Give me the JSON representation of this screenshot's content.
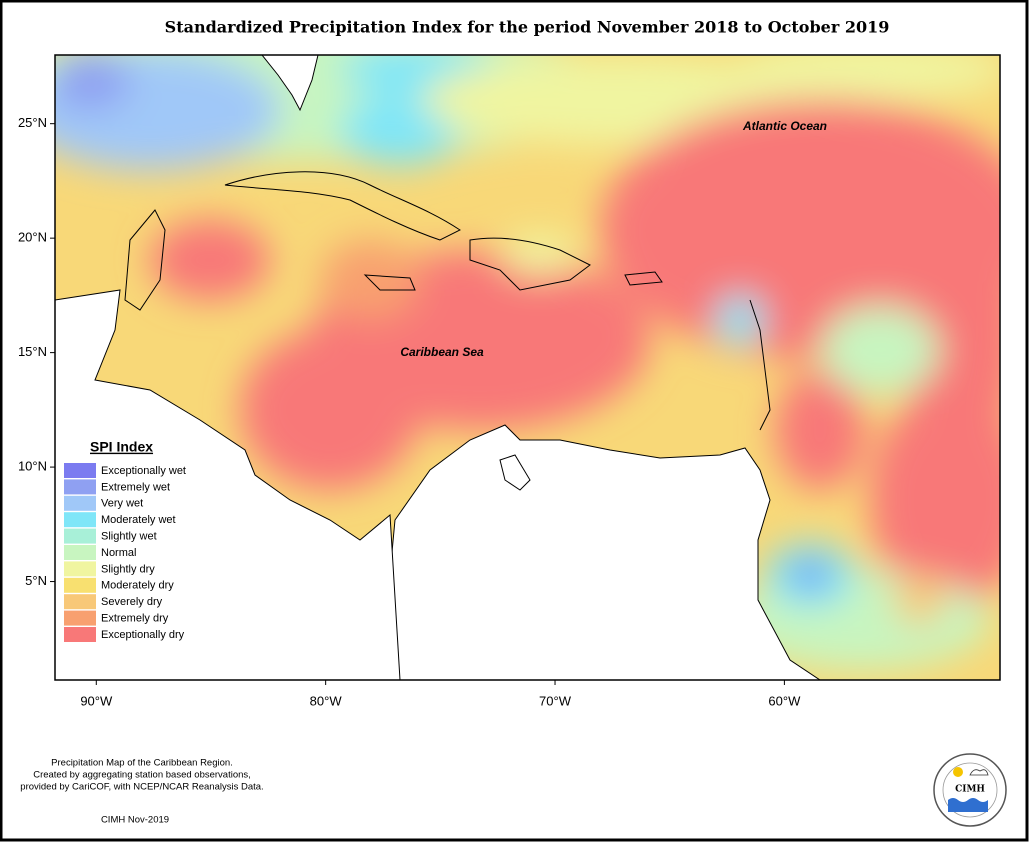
{
  "title": "Standardized Precipitation Index for the period November 2018 to October 2019",
  "map": {
    "lon_range": [
      -91.8,
      -50.6
    ],
    "lat_range": [
      0.7,
      28
    ],
    "lat_ticks": [
      {
        "value": 25,
        "label": "25°N"
      },
      {
        "value": 20,
        "label": "20°N"
      },
      {
        "value": 15,
        "label": "15°N"
      },
      {
        "value": 10,
        "label": "10°N"
      },
      {
        "value": 5,
        "label": "5°N"
      }
    ],
    "lon_ticks": [
      {
        "value": -90,
        "label": "90°W"
      },
      {
        "value": -80,
        "label": "80°W"
      },
      {
        "value": -70,
        "label": "70°W"
      },
      {
        "value": -60,
        "label": "60°W"
      }
    ],
    "labels": [
      "Atlantic Ocean",
      "Caribbean Sea"
    ]
  },
  "legend": {
    "title": "SPI Index",
    "items": [
      {
        "label": "Exceptionally wet",
        "color": "#7b7bf0"
      },
      {
        "label": "Extremely wet",
        "color": "#8fa0f2"
      },
      {
        "label": "Very wet",
        "color": "#a0c8f8"
      },
      {
        "label": "Moderately wet",
        "color": "#7fe6f8"
      },
      {
        "label": "Slightly wet",
        "color": "#a8f0d8"
      },
      {
        "label": "Normal",
        "color": "#c8f5c0"
      },
      {
        "label": "Slightly dry",
        "color": "#f0f5a0"
      },
      {
        "label": "Moderately dry",
        "color": "#f8e070"
      },
      {
        "label": "Severely dry",
        "color": "#f8c878"
      },
      {
        "label": "Extremely dry",
        "color": "#f8a070"
      },
      {
        "label": "Exceptionally dry",
        "color": "#f87878"
      }
    ]
  },
  "footer": {
    "lines": [
      "Precipitation Map of the Caribbean Region.",
      "Created by aggregating station based observations,",
      "provided by CariCOF, with NCEP/NCAR Reanalysis Data."
    ],
    "credit": "CIMH Nov-2019"
  },
  "logo": {
    "text": "CIMH"
  }
}
